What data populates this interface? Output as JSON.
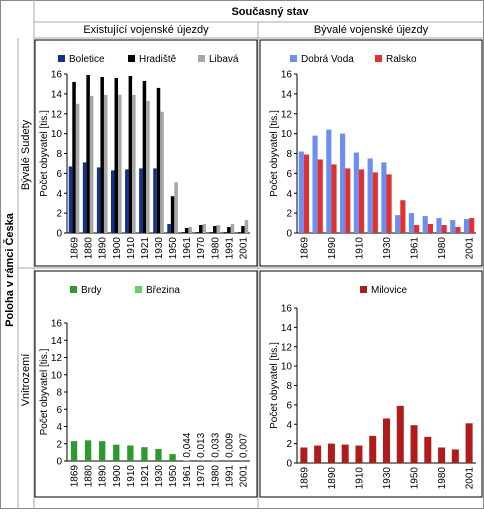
{
  "header": {
    "title": "Současný stav",
    "columns": [
      "Existující vojenské újezdy",
      "Bývalé vojenské újezdy"
    ],
    "row_title": "Poloha v rámci Česka",
    "rows": [
      "Bývalé Sudety",
      "Vnitrozemí"
    ]
  },
  "chart_data": [
    {
      "type": "bar",
      "y_label": "Počet obyvatel [tis.]",
      "categories": [
        "1869",
        "1880",
        "1890",
        "1900",
        "1910",
        "1921",
        "1930",
        "1950",
        "1961",
        "1970",
        "1980",
        "1991",
        "2001"
      ],
      "series": [
        {
          "name": "Boletice",
          "color": "#14318c",
          "values": [
            6.7,
            7.1,
            6.6,
            6.3,
            6.4,
            6.5,
            6.5,
            0.9,
            0.1,
            0.1,
            0.1,
            0.1,
            0.1
          ]
        },
        {
          "name": "Hradiště",
          "color": "#000000",
          "values": [
            15.2,
            15.9,
            15.7,
            15.6,
            15.8,
            15.3,
            14.6,
            3.7,
            0.5,
            0.8,
            0.7,
            0.6,
            0.7
          ]
        },
        {
          "name": "Libavá",
          "color": "#a6a6a6",
          "values": [
            13.0,
            13.8,
            13.9,
            13.9,
            13.9,
            13.3,
            12.2,
            5.1,
            0.6,
            0.9,
            0.8,
            0.9,
            1.3
          ]
        }
      ],
      "ylim": [
        0,
        16
      ],
      "yticks": [
        0,
        2,
        4,
        6,
        8,
        10,
        12,
        14,
        16
      ]
    },
    {
      "type": "bar",
      "y_label": "Počet obyvatel [tis.]",
      "categories": [
        "1869",
        null,
        "1890",
        null,
        "1910",
        null,
        "1930",
        null,
        "1961",
        null,
        "1980",
        null,
        "2001"
      ],
      "series": [
        {
          "name": "Dobrá Voda",
          "color": "#6a8ff0",
          "values": [
            8.2,
            9.8,
            10.4,
            10.0,
            8.1,
            7.5,
            7.1,
            1.8,
            2.0,
            1.7,
            1.5,
            1.3,
            1.4
          ]
        },
        {
          "name": "Ralsko",
          "color": "#e03030",
          "values": [
            7.9,
            7.4,
            6.9,
            6.5,
            6.4,
            6.1,
            5.9,
            3.3,
            0.8,
            0.9,
            0.8,
            0.6,
            1.5
          ]
        }
      ],
      "ylim": [
        0,
        16
      ],
      "yticks": [
        0,
        2,
        4,
        6,
        8,
        10,
        12,
        14,
        16
      ]
    },
    {
      "type": "bar",
      "y_label": "Počet obyvatel [tis.]",
      "categories": [
        "1869",
        "1880",
        "1890",
        "1900",
        "1910",
        "1921",
        "1930",
        "1950",
        "1961",
        "1970",
        "1980",
        "1991",
        "2001"
      ],
      "series": [
        {
          "name": "Brdy",
          "color": "#2e9a2e",
          "values": [
            2.3,
            2.4,
            2.3,
            1.9,
            1.8,
            1.6,
            1.4,
            0.8,
            null,
            null,
            null,
            null,
            null
          ]
        },
        {
          "name": "Březina",
          "color": "#66d066",
          "values": [
            null,
            null,
            null,
            null,
            null,
            null,
            null,
            null,
            0.044,
            0.013,
            0.033,
            0.009,
            0.007
          ],
          "value_labels": [
            null,
            null,
            null,
            null,
            null,
            null,
            null,
            null,
            "0,044",
            "0,013",
            "0,033",
            "0,009",
            "0,007"
          ]
        }
      ],
      "ylim": [
        0,
        16
      ],
      "yticks": [
        0,
        2,
        4,
        6,
        8,
        10,
        12,
        14,
        16
      ]
    },
    {
      "type": "bar",
      "y_label": "Počet obyvatel [tis.]",
      "categories": [
        "1869",
        null,
        "1890",
        null,
        "1910",
        null,
        "1930",
        null,
        "1950",
        null,
        "1980",
        null,
        "2001"
      ],
      "series": [
        {
          "name": "Milovice",
          "color": "#b01c1c",
          "values": [
            1.6,
            1.8,
            2.0,
            1.9,
            1.8,
            2.8,
            4.6,
            5.9,
            3.9,
            2.7,
            1.6,
            1.4,
            4.1
          ]
        }
      ],
      "ylim": [
        0,
        16
      ],
      "yticks": [
        0,
        2,
        4,
        6,
        8,
        10,
        12,
        14,
        16
      ]
    }
  ]
}
